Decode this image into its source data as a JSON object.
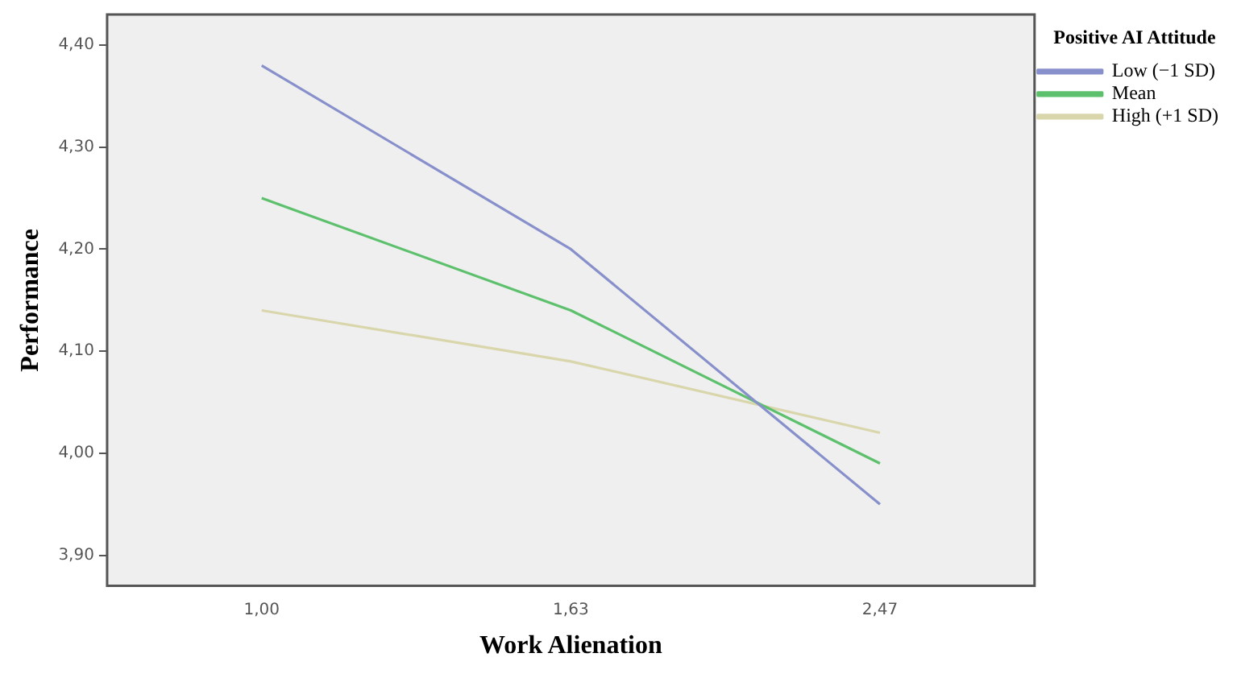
{
  "chart_data": {
    "type": "line",
    "xlabel": "Work Alienation",
    "ylabel": "Performance",
    "legend_title": "Positive AI Attitude",
    "categories": [
      "1,00",
      "1,63",
      "2,47"
    ],
    "series": [
      {
        "name": "Low (−1 SD)",
        "color": "#8890cc",
        "values": [
          4.38,
          4.2,
          3.95
        ]
      },
      {
        "name": "Mean",
        "color": "#5cc06c",
        "values": [
          4.25,
          4.14,
          3.99
        ]
      },
      {
        "name": "High (+1 SD)",
        "color": "#d9d6ac",
        "values": [
          4.14,
          4.09,
          4.02
        ]
      }
    ],
    "ylim": [
      3.87,
      4.43
    ],
    "yticks": [
      {
        "value": 3.9,
        "label": "3,90"
      },
      {
        "value": 4.0,
        "label": "4,00"
      },
      {
        "value": 4.1,
        "label": "4,10"
      },
      {
        "value": 4.2,
        "label": "4,20"
      },
      {
        "value": 4.3,
        "label": "4,30"
      },
      {
        "value": 4.4,
        "label": "4,40"
      }
    ],
    "grid": false,
    "legend": "top right",
    "marker": "none",
    "line_style": "solid"
  }
}
